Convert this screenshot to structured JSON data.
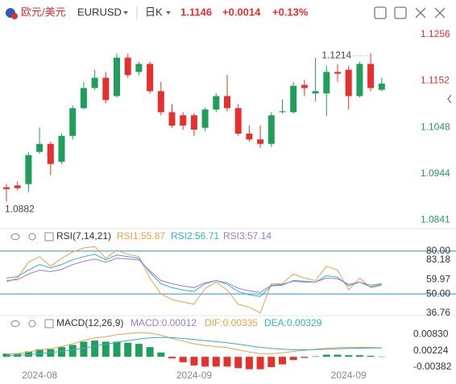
{
  "header": {
    "name": "欧元/美元",
    "symbol": "EURUSD",
    "period": "日K",
    "price": "1.1146",
    "change": "+0.0014",
    "change_pct": "+0.13%"
  },
  "chart_data": [
    {
      "type": "candlestick",
      "up_color": "#1f9e5c",
      "down_color": "#e5302d",
      "categories": [
        null,
        null,
        null,
        "2024-08",
        null,
        null,
        null,
        null,
        null,
        null,
        null,
        null,
        null,
        null,
        null,
        null,
        null,
        "2024-09",
        null,
        null,
        null,
        null,
        null,
        null,
        null,
        null,
        null,
        null,
        null,
        null,
        null,
        "2024-09",
        null,
        null,
        null
      ],
      "candles": [
        [
          1.0914,
          1.0921,
          1.0882,
          1.091
        ],
        [
          1.0918,
          1.0927,
          1.0907,
          1.0912
        ],
        [
          1.0921,
          1.0993,
          1.0903,
          1.0986
        ],
        [
          1.0993,
          1.1048,
          1.0989,
          1.1011
        ],
        [
          1.1011,
          1.1016,
          1.0941,
          1.0966
        ],
        [
          1.0971,
          1.1034,
          1.0966,
          1.1029
        ],
        [
          1.1029,
          1.1097,
          1.1021,
          1.1091
        ],
        [
          1.1091,
          1.115,
          1.1088,
          1.1136
        ],
        [
          1.1136,
          1.1177,
          1.1132,
          1.1159
        ],
        [
          1.1159,
          1.1172,
          1.1102,
          1.1109
        ],
        [
          1.1118,
          1.1213,
          1.1115,
          1.1204
        ],
        [
          1.1204,
          1.1213,
          1.1159,
          1.1165
        ],
        [
          1.1172,
          1.1195,
          1.1165,
          1.119
        ],
        [
          1.119,
          1.1195,
          1.1124,
          1.1129
        ],
        [
          1.1129,
          1.115,
          1.1075,
          1.1082
        ],
        [
          1.1082,
          1.11,
          1.1047,
          1.1052
        ],
        [
          1.1075,
          1.1082,
          1.1043,
          1.1052
        ],
        [
          1.1075,
          1.1079,
          1.1029,
          1.1043
        ],
        [
          1.1047,
          1.1093,
          1.1039,
          1.1088
        ],
        [
          1.1088,
          1.1124,
          1.1082,
          1.1118
        ],
        [
          1.1118,
          1.1165,
          1.1084,
          1.1091
        ],
        [
          1.1091,
          1.11,
          1.1029,
          1.1034
        ],
        [
          1.1034,
          1.1052,
          1.1016,
          1.1021
        ],
        [
          1.1021,
          1.1052,
          1.1002,
          1.1011
        ],
        [
          1.1011,
          1.1082,
          1.1004,
          1.1075
        ],
        [
          1.1082,
          1.1111,
          1.1079,
          1.1084
        ],
        [
          1.1082,
          1.115,
          1.1079,
          1.1141
        ],
        [
          1.1143,
          1.1154,
          1.1118,
          1.1136
        ],
        [
          1.1124,
          1.1204,
          1.1106,
          1.1129
        ],
        [
          1.1124,
          1.1186,
          1.1073,
          1.1172
        ],
        [
          1.1172,
          1.119,
          1.115,
          1.1168
        ],
        [
          1.1177,
          1.1186,
          1.1088,
          1.1118
        ],
        [
          1.1118,
          1.1195,
          1.1115,
          1.119
        ],
        [
          1.119,
          1.1214,
          1.1129,
          1.1136
        ],
        [
          1.1132,
          1.1159,
          1.1129,
          1.1146
        ]
      ],
      "ylim": [
        1.0825,
        1.1279
      ],
      "yticks": [
        1.1256,
        1.1152,
        1.1048,
        1.0944,
        1.0841
      ]
    },
    {
      "type": "line",
      "title": "RSI(7,14,21)",
      "ylim": [
        36,
        85
      ],
      "grid": true,
      "grid_color": "#2f8fd8",
      "yticks": [
        {
          "value": 80,
          "label": "80.00"
        },
        {
          "value": 50,
          "label": "50.00"
        }
      ],
      "markers": [
        83.18,
        59.97,
        36.76
      ],
      "series": [
        {
          "name": "RSI1:55.87",
          "color": "#f0a040",
          "values": [
            58.3,
            61.1,
            72.2,
            76.1,
            69.4,
            75,
            79.4,
            82.2,
            83.18,
            75,
            80.6,
            77.8,
            76.1,
            61.1,
            50,
            46.1,
            44.4,
            42.8,
            53.9,
            58.3,
            52.8,
            42.8,
            40.6,
            36.76,
            57.2,
            57.2,
            63.9,
            61.1,
            59.4,
            69.4,
            66.7,
            52.8,
            61.1,
            54.4,
            55.87
          ]
        },
        {
          "name": "RSI2:56.71",
          "color": "#2fb3c6",
          "values": [
            61.1,
            62.2,
            66.7,
            70.6,
            68.3,
            70.6,
            73.9,
            76.1,
            77.8,
            73.9,
            77.2,
            76.1,
            75,
            65,
            57.2,
            54.4,
            52.8,
            51.7,
            57.2,
            59.4,
            56.7,
            51.7,
            49.4,
            48.3,
            55.6,
            56.1,
            59.4,
            58.9,
            58.3,
            62.8,
            61.7,
            55.6,
            58.3,
            55,
            56.71
          ]
        },
        {
          "name": "RSI3:57.14",
          "color": "#9b7ad8",
          "values": [
            59.4,
            60,
            63.9,
            66.7,
            65.6,
            67.2,
            70.6,
            72.8,
            74.4,
            72.2,
            75,
            74.4,
            73.9,
            66.1,
            59.4,
            57.2,
            55.6,
            54.4,
            57.8,
            59.4,
            57.8,
            53.9,
            52.2,
            51.1,
            56.1,
            56.7,
            58.9,
            58.3,
            58.3,
            61.1,
            60.6,
            56.7,
            58.3,
            56.1,
            57.14
          ]
        }
      ]
    },
    {
      "type": "macd",
      "title": "MACD(12,26,9)",
      "ylim": [
        -0.005,
        0.0105
      ],
      "up_color": "#1f9e5c",
      "down_color": "#e5302d",
      "yticks": [
        {
          "value": 0.0083,
          "label": "0.00830"
        },
        0.00224,
        -0.00382
      ],
      "series": [
        {
          "name": "MACD:0.00012",
          "color": "#9b7ad8",
          "kind": "bar",
          "values": [
            0.0012,
            0.0012,
            0.002,
            0.0028,
            0.0028,
            0.0036,
            0.0044,
            0.0056,
            0.006,
            0.0056,
            0.0056,
            0.0052,
            0.0048,
            0.0036,
            0.0016,
            -0.0006,
            -0.002,
            -0.0032,
            -0.0036,
            -0.0036,
            -0.0036,
            -0.0042,
            -0.0046,
            -0.0046,
            -0.0038,
            -0.0028,
            -0.0012,
            -0.0004,
            0.0002,
            0.0008,
            0.0008,
            0.0006,
            0.0006,
            0.0004,
            0.00012
          ]
        },
        {
          "name": "DIF:0.00335",
          "color": "#f0a040",
          "kind": "line",
          "values": [
            0.001,
            0.0012,
            0.0018,
            0.0026,
            0.003,
            0.0038,
            0.0048,
            0.006,
            0.007,
            0.0074,
            0.0082,
            0.0086,
            0.009,
            0.0088,
            0.008,
            0.0068,
            0.0058,
            0.0048,
            0.0042,
            0.0038,
            0.0034,
            0.0026,
            0.0018,
            0.0012,
            0.0012,
            0.0014,
            0.002,
            0.0024,
            0.0028,
            0.0032,
            0.0034,
            0.0034,
            0.0035,
            0.0035,
            0.00335
          ]
        },
        {
          "name": "DEA:0.00329",
          "color": "#2fb3c6",
          "kind": "line",
          "values": [
            0.0004,
            0.0006,
            0.0008,
            0.0012,
            0.0016,
            0.002,
            0.0026,
            0.0032,
            0.004,
            0.0046,
            0.0054,
            0.006,
            0.0066,
            0.007,
            0.0072,
            0.0071,
            0.0068,
            0.0064,
            0.006,
            0.0056,
            0.0052,
            0.0047,
            0.0041,
            0.0035,
            0.0031,
            0.0028,
            0.0026,
            0.0026,
            0.0027,
            0.0028,
            0.003,
            0.0031,
            0.0032,
            0.0033,
            0.00329
          ]
        }
      ]
    }
  ]
}
